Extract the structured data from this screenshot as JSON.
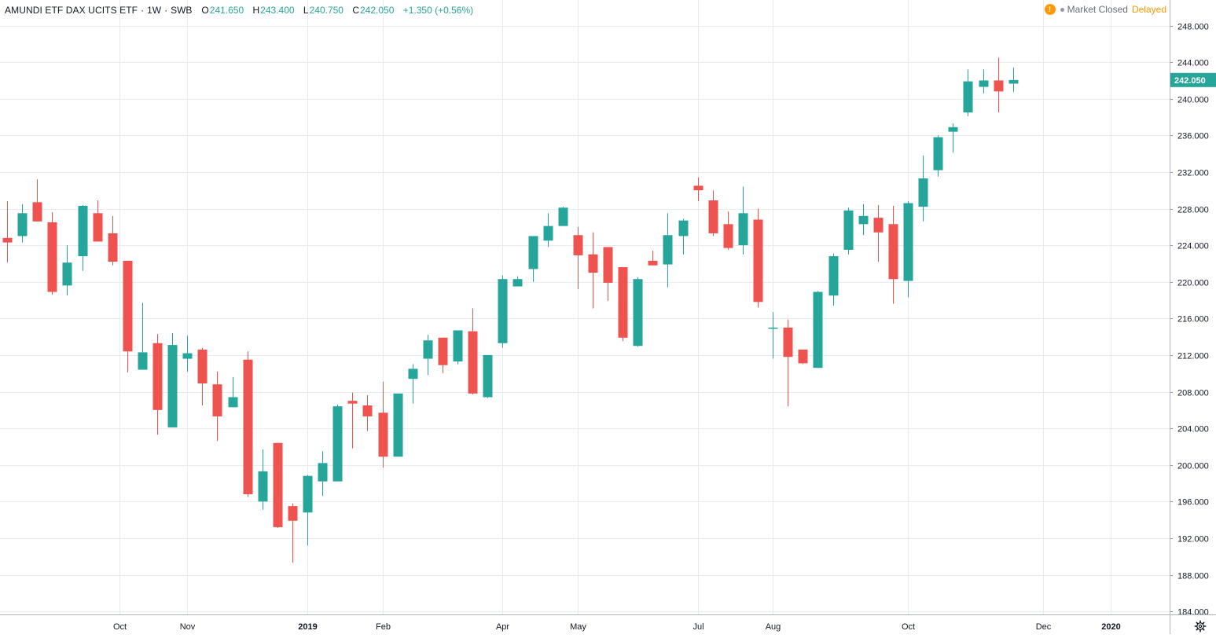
{
  "header": {
    "symbol": "AMUNDI ETF DAX UCITS ETF",
    "interval": "1W",
    "exchange": "SWB",
    "o_label": "O",
    "o_value": "241.650",
    "h_label": "H",
    "h_value": "243.400",
    "l_label": "L",
    "l_value": "240.750",
    "c_label": "C",
    "c_value": "242.050",
    "change": "+1.350 (+0.56%)"
  },
  "status": {
    "warning_icon": "!",
    "market": "Market Closed",
    "delay": "Delayed"
  },
  "colors": {
    "up": "#26a69a",
    "down": "#ef5350",
    "grid": "#e8ebef",
    "axis_text": "#131722"
  },
  "chart_data": {
    "type": "candlestick",
    "title": "AMUNDI ETF DAX UCITS ETF",
    "interval": "1W",
    "ylim": [
      184,
      250
    ],
    "y_ticks": [
      "184.000",
      "188.000",
      "192.000",
      "196.000",
      "200.000",
      "204.000",
      "208.000",
      "212.000",
      "216.000",
      "220.000",
      "224.000",
      "228.000",
      "232.000",
      "236.000",
      "240.000",
      "244.000",
      "248.000"
    ],
    "x_ticks": [
      {
        "label": "Oct",
        "index": 7.5
      },
      {
        "label": "Nov",
        "index": 12
      },
      {
        "label": "2019",
        "index": 20
      },
      {
        "label": "Feb",
        "index": 25
      },
      {
        "label": "Apr",
        "index": 33
      },
      {
        "label": "May",
        "index": 38
      },
      {
        "label": "Jul",
        "index": 46
      },
      {
        "label": "Aug",
        "index": 51
      },
      {
        "label": "Oct",
        "index": 60
      },
      {
        "label": "Dec",
        "index": 69
      },
      {
        "label": "2020",
        "index": 73.5
      }
    ],
    "last_price": "242.050",
    "candles": [
      {
        "o": 224.8,
        "h": 228.8,
        "l": 222.1,
        "c": 224.3
      },
      {
        "o": 225.0,
        "h": 228.5,
        "l": 224.3,
        "c": 227.5
      },
      {
        "o": 228.7,
        "h": 231.2,
        "l": 226.6,
        "c": 226.6
      },
      {
        "o": 226.5,
        "h": 227.6,
        "l": 218.6,
        "c": 218.9
      },
      {
        "o": 219.6,
        "h": 224.0,
        "l": 218.5,
        "c": 222.1
      },
      {
        "o": 222.8,
        "h": 228.4,
        "l": 221.2,
        "c": 228.3
      },
      {
        "o": 227.5,
        "h": 228.9,
        "l": 224.4,
        "c": 224.4
      },
      {
        "o": 225.3,
        "h": 227.2,
        "l": 221.8,
        "c": 222.2
      },
      {
        "o": 222.3,
        "h": 222.3,
        "l": 210.1,
        "c": 212.4
      },
      {
        "o": 210.4,
        "h": 217.7,
        "l": 210.4,
        "c": 212.3
      },
      {
        "o": 213.3,
        "h": 214.3,
        "l": 203.3,
        "c": 206.0
      },
      {
        "o": 204.1,
        "h": 214.4,
        "l": 204.1,
        "c": 213.1
      },
      {
        "o": 211.6,
        "h": 214.1,
        "l": 210.2,
        "c": 212.2
      },
      {
        "o": 212.6,
        "h": 212.8,
        "l": 206.5,
        "c": 208.9
      },
      {
        "o": 208.8,
        "h": 210.2,
        "l": 202.6,
        "c": 205.3
      },
      {
        "o": 206.3,
        "h": 209.6,
        "l": 206.3,
        "c": 207.4
      },
      {
        "o": 211.5,
        "h": 212.4,
        "l": 196.5,
        "c": 196.8
      },
      {
        "o": 196.0,
        "h": 201.7,
        "l": 195.1,
        "c": 199.3
      },
      {
        "o": 202.4,
        "h": 202.4,
        "l": 193.1,
        "c": 193.2
      },
      {
        "o": 195.5,
        "h": 195.8,
        "l": 189.3,
        "c": 193.9
      },
      {
        "o": 194.8,
        "h": 198.9,
        "l": 191.2,
        "c": 198.8
      },
      {
        "o": 198.2,
        "h": 201.5,
        "l": 196.6,
        "c": 200.2
      },
      {
        "o": 198.2,
        "h": 206.6,
        "l": 198.2,
        "c": 206.4
      },
      {
        "o": 207.0,
        "h": 207.9,
        "l": 201.8,
        "c": 206.7
      },
      {
        "o": 206.5,
        "h": 207.6,
        "l": 203.7,
        "c": 205.3
      },
      {
        "o": 205.7,
        "h": 209.1,
        "l": 199.7,
        "c": 200.9
      },
      {
        "o": 200.9,
        "h": 207.8,
        "l": 200.9,
        "c": 207.8
      },
      {
        "o": 209.4,
        "h": 211.0,
        "l": 206.7,
        "c": 210.5
      },
      {
        "o": 211.6,
        "h": 214.2,
        "l": 209.8,
        "c": 213.6
      },
      {
        "o": 213.9,
        "h": 213.9,
        "l": 210.0,
        "c": 210.9
      },
      {
        "o": 211.3,
        "h": 214.7,
        "l": 211.0,
        "c": 214.7
      },
      {
        "o": 214.6,
        "h": 217.1,
        "l": 207.7,
        "c": 207.8
      },
      {
        "o": 207.4,
        "h": 212.0,
        "l": 207.3,
        "c": 212.0
      },
      {
        "o": 213.3,
        "h": 220.7,
        "l": 212.8,
        "c": 220.3
      },
      {
        "o": 219.5,
        "h": 220.6,
        "l": 219.5,
        "c": 220.3
      },
      {
        "o": 221.4,
        "h": 225.0,
        "l": 220.0,
        "c": 225.0
      },
      {
        "o": 224.5,
        "h": 227.5,
        "l": 223.8,
        "c": 226.1
      },
      {
        "o": 226.1,
        "h": 228.2,
        "l": 226.1,
        "c": 228.1
      },
      {
        "o": 225.1,
        "h": 226.0,
        "l": 219.2,
        "c": 222.9
      },
      {
        "o": 223.0,
        "h": 225.4,
        "l": 217.1,
        "c": 221.0
      },
      {
        "o": 223.8,
        "h": 223.8,
        "l": 217.9,
        "c": 219.9
      },
      {
        "o": 221.6,
        "h": 221.6,
        "l": 213.5,
        "c": 213.9
      },
      {
        "o": 213.0,
        "h": 220.5,
        "l": 212.9,
        "c": 220.3
      },
      {
        "o": 222.3,
        "h": 223.4,
        "l": 221.8,
        "c": 221.8
      },
      {
        "o": 221.9,
        "h": 227.5,
        "l": 219.4,
        "c": 225.1
      },
      {
        "o": 225.0,
        "h": 226.9,
        "l": 223.0,
        "c": 226.7
      },
      {
        "o": 230.5,
        "h": 231.4,
        "l": 228.8,
        "c": 230.0
      },
      {
        "o": 228.9,
        "h": 230.0,
        "l": 225.0,
        "c": 225.3
      },
      {
        "o": 226.3,
        "h": 227.7,
        "l": 223.5,
        "c": 223.7
      },
      {
        "o": 224.0,
        "h": 230.4,
        "l": 223.0,
        "c": 227.5
      },
      {
        "o": 226.8,
        "h": 228.0,
        "l": 217.2,
        "c": 217.8
      },
      {
        "o": 215.0,
        "h": 216.7,
        "l": 211.6,
        "c": 215.0
      },
      {
        "o": 215.0,
        "h": 215.9,
        "l": 206.4,
        "c": 211.8
      },
      {
        "o": 212.6,
        "h": 212.6,
        "l": 211.0,
        "c": 211.1
      },
      {
        "o": 210.6,
        "h": 219.0,
        "l": 210.6,
        "c": 218.9
      },
      {
        "o": 218.5,
        "h": 223.1,
        "l": 217.4,
        "c": 222.8
      },
      {
        "o": 223.5,
        "h": 228.1,
        "l": 223.0,
        "c": 227.8
      },
      {
        "o": 226.3,
        "h": 228.5,
        "l": 225.1,
        "c": 227.2
      },
      {
        "o": 227.0,
        "h": 228.4,
        "l": 222.2,
        "c": 225.4
      },
      {
        "o": 226.3,
        "h": 228.3,
        "l": 217.6,
        "c": 220.3
      },
      {
        "o": 220.1,
        "h": 228.8,
        "l": 218.3,
        "c": 228.6
      },
      {
        "o": 228.2,
        "h": 233.8,
        "l": 226.6,
        "c": 231.3
      },
      {
        "o": 232.2,
        "h": 236.0,
        "l": 231.5,
        "c": 235.8
      },
      {
        "o": 236.4,
        "h": 237.3,
        "l": 234.1,
        "c": 236.9
      },
      {
        "o": 238.5,
        "h": 243.2,
        "l": 238.1,
        "c": 241.9
      },
      {
        "o": 241.3,
        "h": 243.2,
        "l": 240.6,
        "c": 242.0
      },
      {
        "o": 242.0,
        "h": 244.5,
        "l": 238.5,
        "c": 240.8
      },
      {
        "o": 241.65,
        "h": 243.4,
        "l": 240.75,
        "c": 242.05
      }
    ]
  }
}
